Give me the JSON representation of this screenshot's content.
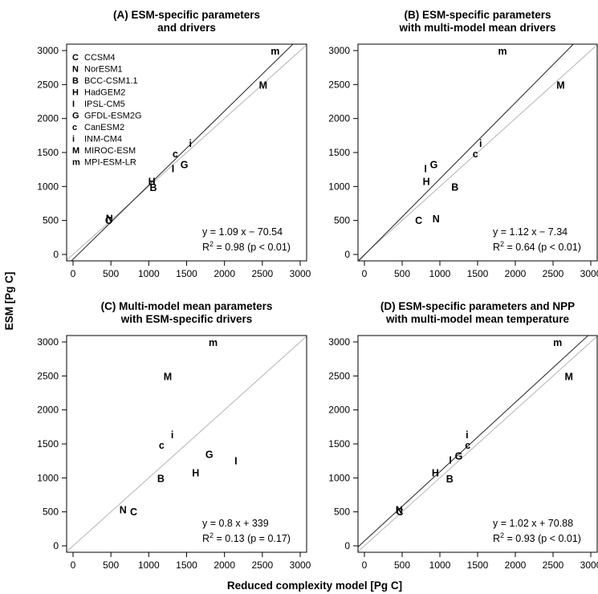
{
  "figure": {
    "ylabel": "ESM [Pg C]",
    "xlabel": "Reduced complexity model [Pg C]"
  },
  "legend": [
    {
      "key": "C",
      "label": "CCSM4"
    },
    {
      "key": "N",
      "label": "NorESM1"
    },
    {
      "key": "B",
      "label": "BCC-CSM1.1"
    },
    {
      "key": "H",
      "label": "HadGEM2"
    },
    {
      "key": "I",
      "label": "IPSL-CM5"
    },
    {
      "key": "G",
      "label": "GFDL-ESM2G"
    },
    {
      "key": "c",
      "label": "CanESM2"
    },
    {
      "key": "i",
      "label": "INM-CM4"
    },
    {
      "key": "M",
      "label": "MIROC-ESM"
    },
    {
      "key": "m",
      "label": "MPI-ESM-LR"
    }
  ],
  "chart_data": [
    {
      "type": "scatter",
      "title": [
        "(A) ESM-specific parameters",
        "and drivers"
      ],
      "xlim": [
        0,
        3000
      ],
      "ylim": [
        0,
        3000
      ],
      "xticks": [
        "0",
        "500",
        "1000",
        "1500",
        "2000",
        "2500",
        "3000"
      ],
      "yticks": [
        "0",
        "500",
        "1000",
        "1500",
        "2000",
        "2500",
        "3000"
      ],
      "grid": false,
      "legend_position": "top-left",
      "fit": {
        "slope": 1.09,
        "intercept": -70.54,
        "show_line": true
      },
      "equation": "y = 1.09 x − 70.54",
      "r2_text": "R",
      "r2_sup": "2",
      "r2_value": " = 0.98  (p < 0.01)",
      "points": [
        {
          "label": "C",
          "x": 470,
          "y": 510
        },
        {
          "label": "N",
          "x": 480,
          "y": 540
        },
        {
          "label": "B",
          "x": 1060,
          "y": 990
        },
        {
          "label": "H",
          "x": 1040,
          "y": 1080
        },
        {
          "label": "I",
          "x": 1320,
          "y": 1270
        },
        {
          "label": "G",
          "x": 1470,
          "y": 1330
        },
        {
          "label": "c",
          "x": 1350,
          "y": 1490
        },
        {
          "label": "i",
          "x": 1550,
          "y": 1640
        },
        {
          "label": "M",
          "x": 2510,
          "y": 2500
        },
        {
          "label": "m",
          "x": 2670,
          "y": 3000
        }
      ]
    },
    {
      "type": "scatter",
      "title": [
        "(B) ESM-specific parameters",
        "with multi-model mean drivers"
      ],
      "xlim": [
        0,
        3000
      ],
      "ylim": [
        0,
        3000
      ],
      "xticks": [
        "0",
        "500",
        "1000",
        "1500",
        "2000",
        "2500",
        "3000"
      ],
      "yticks": [
        "0",
        "500",
        "1000",
        "1500",
        "2000",
        "2500",
        "3000"
      ],
      "grid": false,
      "fit": {
        "slope": 1.12,
        "intercept": -7.34,
        "show_line": true
      },
      "equation": "y = 1.12 x − 7.34",
      "r2_text": "R",
      "r2_sup": "2",
      "r2_value": " = 0.64  (p < 0.01)",
      "points": [
        {
          "label": "C",
          "x": 720,
          "y": 510
        },
        {
          "label": "N",
          "x": 950,
          "y": 530
        },
        {
          "label": "B",
          "x": 1200,
          "y": 1000
        },
        {
          "label": "H",
          "x": 820,
          "y": 1080
        },
        {
          "label": "I",
          "x": 810,
          "y": 1270
        },
        {
          "label": "G",
          "x": 920,
          "y": 1330
        },
        {
          "label": "c",
          "x": 1470,
          "y": 1490
        },
        {
          "label": "i",
          "x": 1540,
          "y": 1640
        },
        {
          "label": "M",
          "x": 2600,
          "y": 2500
        },
        {
          "label": "m",
          "x": 1830,
          "y": 3000
        }
      ]
    },
    {
      "type": "scatter",
      "title": [
        "(C) Multi-model mean parameters",
        "with ESM-specific drivers"
      ],
      "xlim": [
        0,
        3000
      ],
      "ylim": [
        0,
        3000
      ],
      "xticks": [
        "0",
        "500",
        "1000",
        "1500",
        "2000",
        "2500",
        "3000"
      ],
      "yticks": [
        "0",
        "500",
        "1000",
        "1500",
        "2000",
        "2500",
        "3000"
      ],
      "grid": false,
      "fit": {
        "slope": 0.8,
        "intercept": 339,
        "show_line": false
      },
      "equation": "y = 0.8 x + 339",
      "r2_text": "R",
      "r2_sup": "2",
      "r2_value": " = 0.13  (p = 0.17)",
      "points": [
        {
          "label": "C",
          "x": 800,
          "y": 510
        },
        {
          "label": "N",
          "x": 660,
          "y": 540
        },
        {
          "label": "B",
          "x": 1160,
          "y": 1000
        },
        {
          "label": "H",
          "x": 1620,
          "y": 1080
        },
        {
          "label": "I",
          "x": 2150,
          "y": 1260
        },
        {
          "label": "G",
          "x": 1800,
          "y": 1350
        },
        {
          "label": "c",
          "x": 1170,
          "y": 1490
        },
        {
          "label": "i",
          "x": 1310,
          "y": 1640
        },
        {
          "label": "M",
          "x": 1250,
          "y": 2500
        },
        {
          "label": "m",
          "x": 1850,
          "y": 3000
        }
      ]
    },
    {
      "type": "scatter",
      "title": [
        "(D) ESM-specific parameters and NPP",
        "with multi-model mean temperature"
      ],
      "xlim": [
        0,
        3000
      ],
      "ylim": [
        0,
        3000
      ],
      "xticks": [
        "0",
        "500",
        "1000",
        "1500",
        "2000",
        "2500",
        "3000"
      ],
      "yticks": [
        "0",
        "500",
        "1000",
        "1500",
        "2000",
        "2500",
        "3000"
      ],
      "grid": false,
      "fit": {
        "slope": 1.02,
        "intercept": 70.88,
        "show_line": true
      },
      "equation": "y = 1.02 x + 70.88",
      "r2_text": "R",
      "r2_sup": "2",
      "r2_value": " = 0.93  (p < 0.01)",
      "points": [
        {
          "label": "C",
          "x": 470,
          "y": 510
        },
        {
          "label": "N",
          "x": 460,
          "y": 540
        },
        {
          "label": "B",
          "x": 1130,
          "y": 990
        },
        {
          "label": "H",
          "x": 940,
          "y": 1080
        },
        {
          "label": "I",
          "x": 1140,
          "y": 1270
        },
        {
          "label": "G",
          "x": 1250,
          "y": 1330
        },
        {
          "label": "c",
          "x": 1370,
          "y": 1490
        },
        {
          "label": "i",
          "x": 1360,
          "y": 1640
        },
        {
          "label": "M",
          "x": 2710,
          "y": 2500
        },
        {
          "label": "m",
          "x": 2560,
          "y": 3000
        }
      ]
    }
  ]
}
